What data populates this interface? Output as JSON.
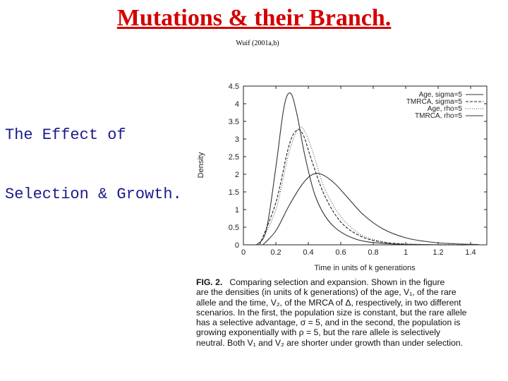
{
  "slide": {
    "title": "Mutations & their Branch.",
    "citation": "Wuif (2001a,b)",
    "side_text": [
      "The Effect of",
      "Selection & Growth."
    ]
  },
  "caption": {
    "head": "FIG. 2.",
    "lines": [
      "Comparing selection and expansion. Shown in the figure",
      "are the densities (in units of k generations) of the age, V₁, of the rare",
      "allele and the time, V₂, of the MRCA of Δ, respectively, in two different",
      "scenarios. In the first, the population size is constant, but the rare allele",
      "has a selective advantage, σ = 5, and in the second, the population is",
      "growing exponentially with ρ = 5, but the rare allele is selectively",
      "neutral. Both V₁ and V₂ are shorter under growth than under selection."
    ]
  },
  "chart_data": {
    "type": "line",
    "xlabel": "Time in units of k generations",
    "ylabel": "Density",
    "xlim": [
      0,
      1.5
    ],
    "ylim": [
      0,
      4.5
    ],
    "x_ticks": [
      "0",
      "0.2",
      "0.4",
      "0.6",
      "0.8",
      "1",
      "1.2",
      "1.4"
    ],
    "y_ticks": [
      "0",
      "0.5",
      "1",
      "1.5",
      "2",
      "2.5",
      "3",
      "3.5",
      "4",
      "4.5"
    ],
    "legend_position": "top-right",
    "grid": false,
    "series": [
      {
        "name": "Age, sigma=5",
        "dash": "",
        "x": [
          0.08,
          0.14,
          0.2,
          0.25,
          0.29,
          0.33,
          0.38,
          0.45,
          0.55,
          0.7,
          0.9,
          1.1,
          1.3,
          1.45
        ],
        "y": [
          0,
          0.4,
          2.2,
          3.9,
          4.3,
          3.7,
          2.5,
          1.3,
          0.55,
          0.15,
          0.03,
          0.01,
          0,
          0
        ]
      },
      {
        "name": "TMRCA, sigma=5",
        "dash": "4,2",
        "x": [
          0.1,
          0.2,
          0.28,
          0.33,
          0.37,
          0.42,
          0.5,
          0.6,
          0.72,
          0.85,
          1.0,
          1.2,
          1.4
        ],
        "y": [
          0,
          1.2,
          2.8,
          3.25,
          3.1,
          2.4,
          1.4,
          0.65,
          0.25,
          0.08,
          0.02,
          0,
          0
        ]
      },
      {
        "name": "Age, rho=5",
        "dash": "1,2",
        "x": [
          0.1,
          0.2,
          0.28,
          0.34,
          0.38,
          0.43,
          0.5,
          0.6,
          0.72,
          0.85,
          1.0,
          1.2,
          1.4
        ],
        "y": [
          0,
          1.0,
          2.6,
          3.3,
          3.2,
          2.6,
          1.6,
          0.8,
          0.3,
          0.1,
          0.03,
          0,
          0
        ]
      },
      {
        "name": "TMRCA, rho=5",
        "dash": "",
        "x": [
          0.12,
          0.2,
          0.28,
          0.36,
          0.42,
          0.48,
          0.56,
          0.64,
          0.74,
          0.86,
          1.0,
          1.15,
          1.3,
          1.45
        ],
        "y": [
          0,
          0.4,
          1.1,
          1.7,
          1.98,
          2.0,
          1.75,
          1.35,
          0.85,
          0.45,
          0.2,
          0.08,
          0.03,
          0.01
        ]
      }
    ]
  }
}
